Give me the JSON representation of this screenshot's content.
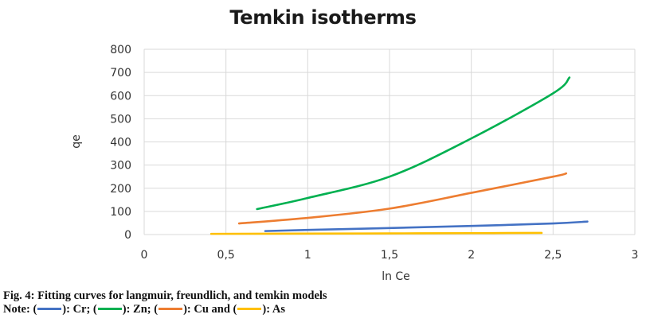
{
  "chart_data": {
    "type": "line",
    "title": "Temkin isotherms",
    "xlabel": "ln Ce",
    "ylabel": "qe",
    "xlim": [
      0,
      3
    ],
    "ylim": [
      0,
      800
    ],
    "xticks": [
      "0",
      "0,5",
      "1",
      "1,5",
      "2",
      "2,5",
      "3"
    ],
    "yticks": [
      "0",
      "100",
      "200",
      "300",
      "400",
      "500",
      "600",
      "700",
      "800"
    ],
    "grid": true,
    "legend_position": "caption",
    "series": [
      {
        "name": "Cr",
        "color": "#4472C4",
        "x": [
          0.74,
          1.0,
          1.5,
          2.0,
          2.5,
          2.71
        ],
        "y": [
          15,
          20,
          28,
          37,
          48,
          56
        ]
      },
      {
        "name": "Zn",
        "color": "#00B050",
        "x": [
          0.69,
          1.0,
          1.5,
          2.0,
          2.5,
          2.6
        ],
        "y": [
          110,
          158,
          250,
          415,
          610,
          678
        ]
      },
      {
        "name": "Cu",
        "color": "#ED7D31",
        "x": [
          0.58,
          1.0,
          1.5,
          2.0,
          2.5,
          2.58
        ],
        "y": [
          48,
          72,
          112,
          180,
          250,
          264
        ]
      },
      {
        "name": "As",
        "color": "#FFC000",
        "x": [
          0.41,
          1.0,
          1.5,
          2.0,
          2.43
        ],
        "y": [
          3,
          4,
          5,
          6,
          7
        ]
      }
    ]
  },
  "caption": {
    "figure_title": "Fig. 4: Fitting curves for langmuir, freundlich, and temkin models",
    "note_prefix": "Note: (",
    "items": [
      {
        "label": "): Cr; (",
        "color": "#4472C4"
      },
      {
        "label": "): Zn; (",
        "color": "#00B050"
      },
      {
        "label": "): Cu and (",
        "color": "#ED7D31"
      },
      {
        "label": "): As",
        "color": "#FFC000"
      }
    ]
  }
}
